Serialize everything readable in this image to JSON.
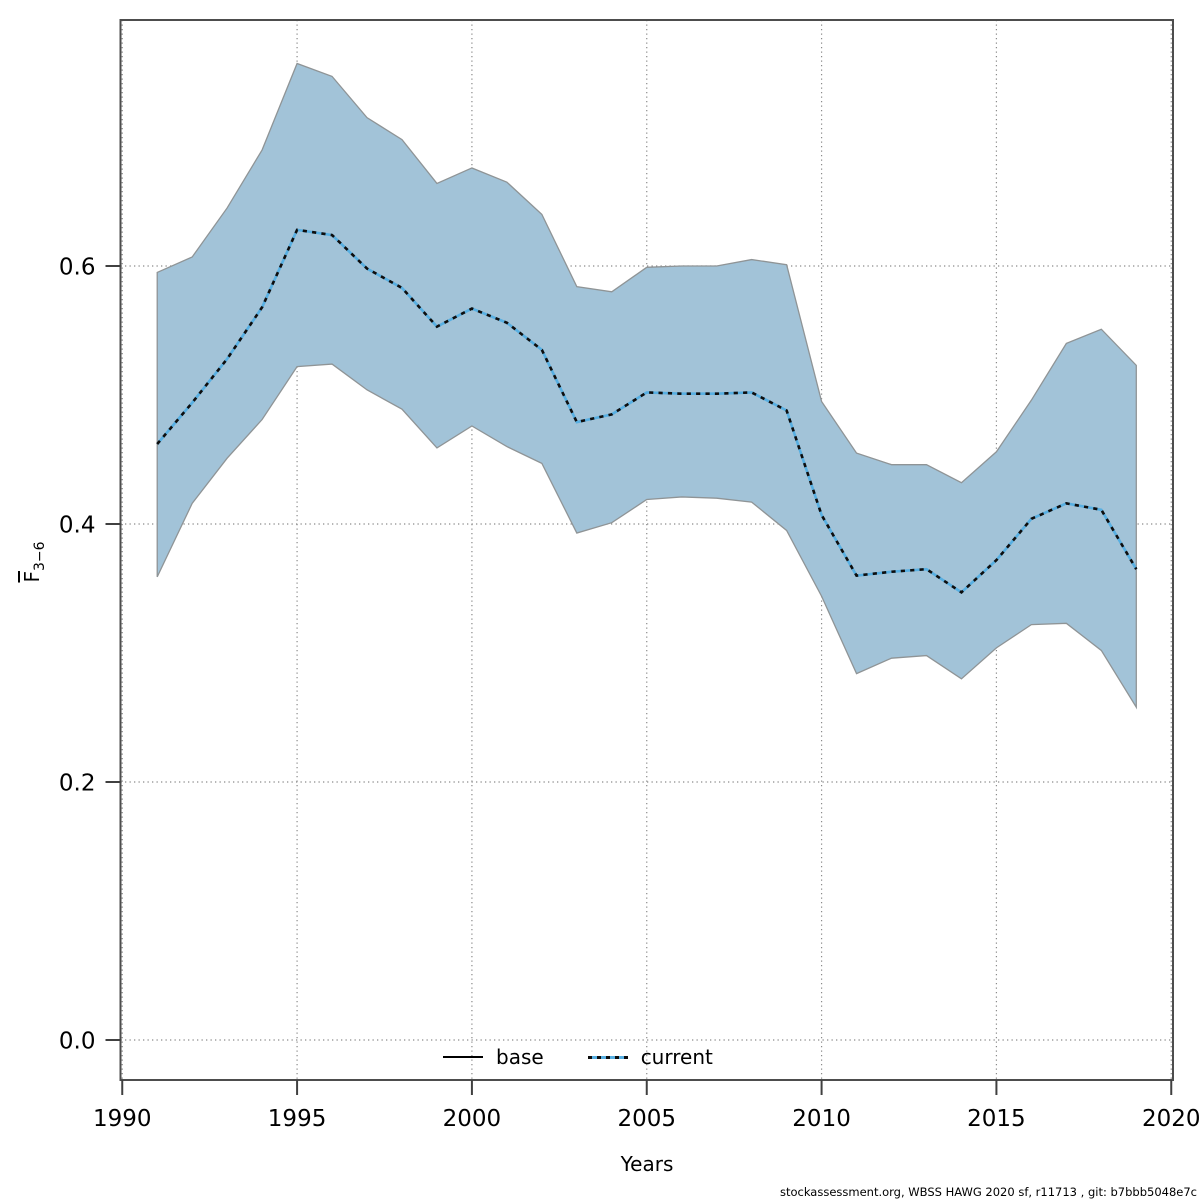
{
  "chart_data": {
    "type": "line",
    "title": "",
    "xlabel": "Years",
    "ylabel": "F̄3−6",
    "grid": true,
    "legend_position": "bottom-center-inside",
    "xlim": [
      1989.95,
      2020.05
    ],
    "ylim": [
      -0.031,
      0.7907
    ],
    "x_ticks": [
      1990,
      1995,
      2000,
      2005,
      2010,
      2015,
      2020
    ],
    "x_tick_labels": [
      "1990",
      "1995",
      "2000",
      "2005",
      "2010",
      "2015",
      "2020"
    ],
    "y_ticks": [
      0.0,
      0.2,
      0.4,
      0.6
    ],
    "y_tick_labels": [
      "0.0",
      "0.2",
      "0.4",
      "0.6"
    ],
    "x": [
      1991,
      1992,
      1993,
      1994,
      1995,
      1996,
      1997,
      1998,
      1999,
      2000,
      2001,
      2002,
      2003,
      2004,
      2005,
      2006,
      2007,
      2008,
      2009,
      2010,
      2011,
      2012,
      2013,
      2014,
      2015,
      2016,
      2017,
      2018,
      2019
    ],
    "series": [
      {
        "name": "base",
        "style": "solid",
        "color": "#000000",
        "values": [
          0.462,
          0.494,
          0.528,
          0.568,
          0.628,
          0.624,
          0.598,
          0.583,
          0.553,
          0.567,
          0.556,
          0.535,
          0.479,
          0.485,
          0.502,
          0.501,
          0.501,
          0.502,
          0.488,
          0.407,
          0.36,
          0.363,
          0.365,
          0.347,
          0.372,
          0.404,
          0.416,
          0.411,
          0.365
        ]
      },
      {
        "name": "current",
        "style": "dotted",
        "color": "#57afe2",
        "values": [
          0.462,
          0.494,
          0.528,
          0.568,
          0.628,
          0.624,
          0.598,
          0.583,
          0.553,
          0.567,
          0.556,
          0.535,
          0.479,
          0.485,
          0.502,
          0.501,
          0.501,
          0.502,
          0.488,
          0.407,
          0.36,
          0.363,
          0.365,
          0.347,
          0.372,
          0.404,
          0.416,
          0.411,
          0.365
        ]
      }
    ],
    "band": {
      "name": "current-confidence-band",
      "lower": [
        0.359,
        0.416,
        0.451,
        0.481,
        0.522,
        0.524,
        0.504,
        0.489,
        0.459,
        0.476,
        0.46,
        0.447,
        0.393,
        0.401,
        0.419,
        0.421,
        0.42,
        0.417,
        0.395,
        0.344,
        0.284,
        0.296,
        0.298,
        0.28,
        0.304,
        0.322,
        0.323,
        0.302,
        0.258
      ],
      "upper": [
        0.595,
        0.607,
        0.645,
        0.69,
        0.757,
        0.747,
        0.715,
        0.698,
        0.664,
        0.676,
        0.665,
        0.64,
        0.584,
        0.58,
        0.599,
        0.6,
        0.6,
        0.605,
        0.601,
        0.495,
        0.455,
        0.446,
        0.446,
        0.432,
        0.456,
        0.496,
        0.54,
        0.551,
        0.523
      ]
    },
    "colors": {
      "band_fill": "#a2c3d8",
      "band_edge": "#8f9496",
      "grid": "#8a8a8a",
      "frame": "#4d4d4d",
      "tick": "#404040",
      "dash_overlay": "#0d0d0d"
    }
  },
  "axis": {
    "x_label": "Years",
    "y_label_main": "F",
    "y_label_sub": "3−6"
  },
  "legend": {
    "items": [
      {
        "label": "base"
      },
      {
        "label": "current"
      }
    ]
  },
  "footer": {
    "credit": "stockassessment.org, WBSS HAWG 2020 sf, r11713 , git: b7bbb5048e7c"
  }
}
